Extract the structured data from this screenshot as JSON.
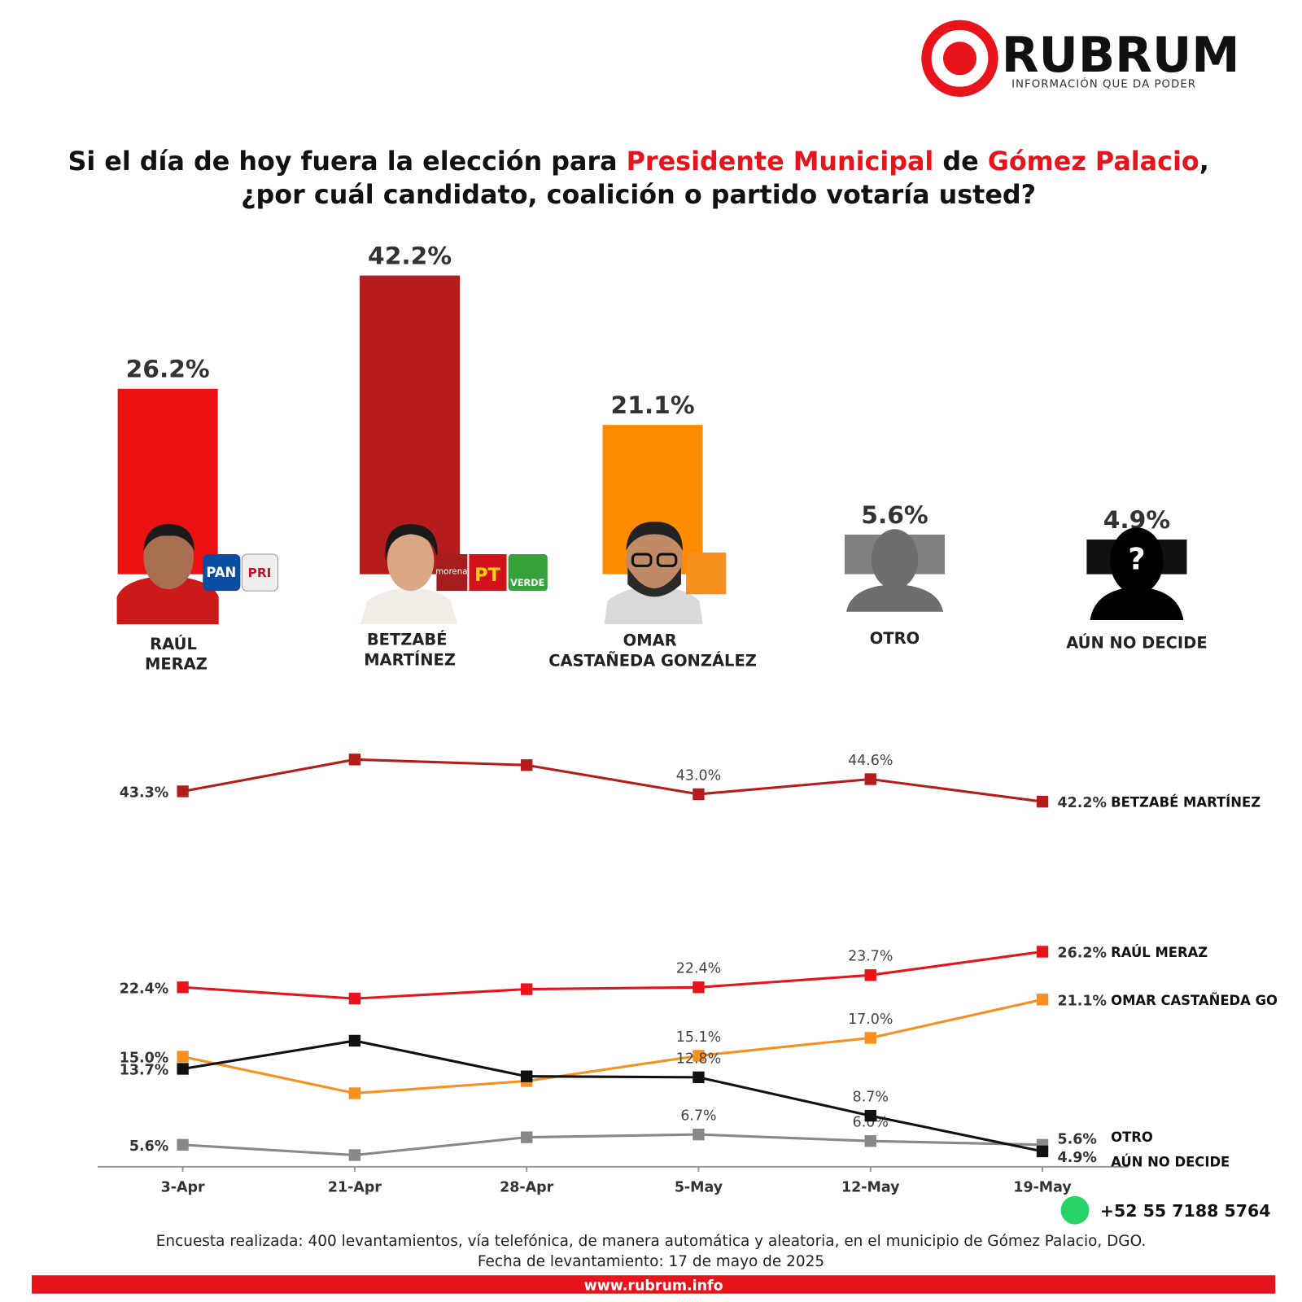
{
  "header": {
    "brand": "RUBRUM",
    "tagline": "INFORMACIÓN QUE DA PODER"
  },
  "title": {
    "line1": [
      {
        "text": "Si el día de hoy fuera la elección para ",
        "highlight": false
      },
      {
        "text": "Presidente Municipal",
        "highlight": true
      },
      {
        "text": " de ",
        "highlight": false
      },
      {
        "text": "Gómez Palacio",
        "highlight": true
      },
      {
        "text": ",",
        "highlight": false
      }
    ],
    "line2": "¿por cuál candidato, coalición o partido votaría usted?"
  },
  "party_logos": {
    "pan": "PAN",
    "pri": "PRI",
    "morena": "morena",
    "pt": "PT",
    "verde": "VERDE"
  },
  "chart_data": [
    {
      "type": "bar",
      "categories": [
        "RAÚL MERAZ",
        "BETZABÉ MARTÍNEZ",
        "OMAR CASTAÑEDA GONZÁLEZ",
        "OTRO",
        "AÚN NO DECIDE"
      ],
      "values": [
        26.2,
        42.2,
        21.1,
        5.6,
        4.9
      ],
      "value_labels": [
        "26.2%",
        "42.2%",
        "21.1%",
        "5.6%",
        "4.9%"
      ],
      "colors": [
        "#ee1111",
        "#b71c1c",
        "#ff8c00",
        "#808080",
        "#111111"
      ]
    },
    {
      "type": "line",
      "x": [
        "3-Apr",
        "21-Apr",
        "28-Apr",
        "5-May",
        "12-May",
        "19-May"
      ],
      "series": [
        {
          "name": "BETZABÉ MARTÍNEZ",
          "color": "#b71c1c",
          "values": [
            43.3,
            46.7,
            46.1,
            43.0,
            44.6,
            42.2
          ],
          "value_labels": [
            "43.3%",
            null,
            null,
            "43.0%",
            "44.6%",
            "42.2%"
          ]
        },
        {
          "name": "RAÚL MERAZ",
          "color": "#e8131b",
          "values": [
            22.4,
            21.2,
            22.2,
            22.4,
            23.7,
            26.2
          ],
          "value_labels": [
            "22.4%",
            null,
            null,
            "22.4%",
            "23.7%",
            "26.2%"
          ]
        },
        {
          "name": "OMAR CASTAÑEDA GO",
          "color": "#f7901e",
          "values": [
            15.0,
            11.1,
            12.4,
            15.1,
            17.0,
            21.1
          ],
          "value_labels": [
            "15.0%",
            null,
            null,
            "15.1%",
            "17.0%",
            "21.1%"
          ]
        },
        {
          "name": "OTRO",
          "color": "#888888",
          "values": [
            5.6,
            4.5,
            6.4,
            6.7,
            6.0,
            5.6
          ],
          "value_labels": [
            "5.6%",
            null,
            null,
            "6.7%",
            "6.0%",
            "5.6%"
          ]
        },
        {
          "name": "AÚN NO DECIDE",
          "color": "#111111",
          "values": [
            13.7,
            16.7,
            12.9,
            12.8,
            8.7,
            4.9
          ],
          "value_labels": [
            "13.7%",
            null,
            null,
            "12.8%",
            "8.7%",
            "4.9%"
          ]
        }
      ]
    }
  ],
  "footer": {
    "note": "Encuesta realizada: 400 levantamientos, vía telefónica, de manera automática y aleatoria, en el municipio de Gómez Palacio, DGO.",
    "date": "Fecha de levantamiento: 17 de mayo de 2025",
    "phone": "+52 55 7188 5764",
    "website": "www.rubrum.info"
  }
}
